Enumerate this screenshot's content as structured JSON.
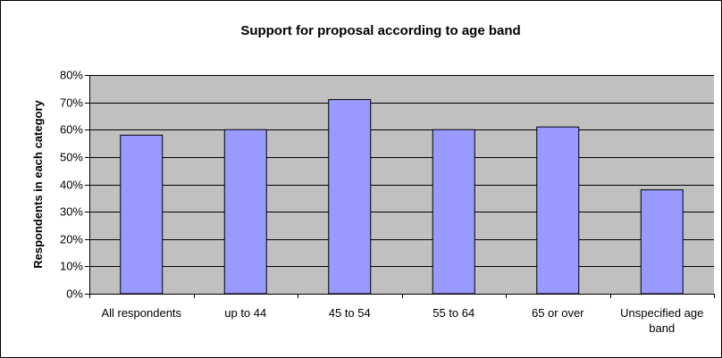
{
  "chart_data": {
    "type": "bar",
    "title": "Support for proposal according to age band",
    "xlabel": "",
    "ylabel": "Respondents in each category",
    "categories": [
      "All respondents",
      "up to 44",
      "45 to 54",
      "55 to 64",
      "65 or over",
      "Unspecified age band"
    ],
    "values": [
      0.58,
      0.6,
      0.71,
      0.6,
      0.61,
      0.38
    ],
    "ylim": [
      0,
      0.8
    ],
    "yticks": [
      "0%",
      "10%",
      "20%",
      "30%",
      "40%",
      "50%",
      "60%",
      "70%",
      "80%"
    ],
    "grid": true,
    "legend": "none",
    "colors": {
      "bar_fill": "#9999ff",
      "bar_stroke": "#000000",
      "plot_background": "#c0c0c0",
      "gridline": "#000000"
    }
  }
}
